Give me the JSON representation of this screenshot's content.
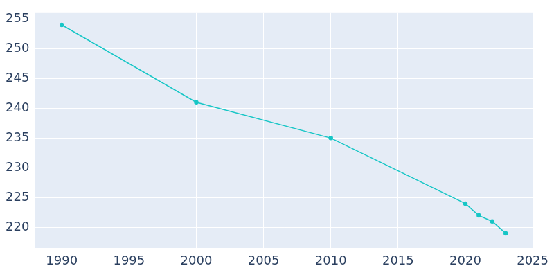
{
  "chart_data": {
    "type": "line",
    "x": [
      1990,
      2000,
      2010,
      2020,
      2021,
      2022,
      2023
    ],
    "values": [
      254,
      241,
      235,
      224,
      222,
      221,
      219
    ],
    "color": "#17c6c6",
    "marker": "circle",
    "xlim": [
      1988,
      2025
    ],
    "xticks": [
      1990,
      1995,
      2000,
      2005,
      2010,
      2015,
      2020,
      2025
    ],
    "ylim": [
      216.5,
      256
    ],
    "yticks": [
      220,
      225,
      230,
      235,
      240,
      245,
      250,
      255
    ],
    "grid": true
  }
}
